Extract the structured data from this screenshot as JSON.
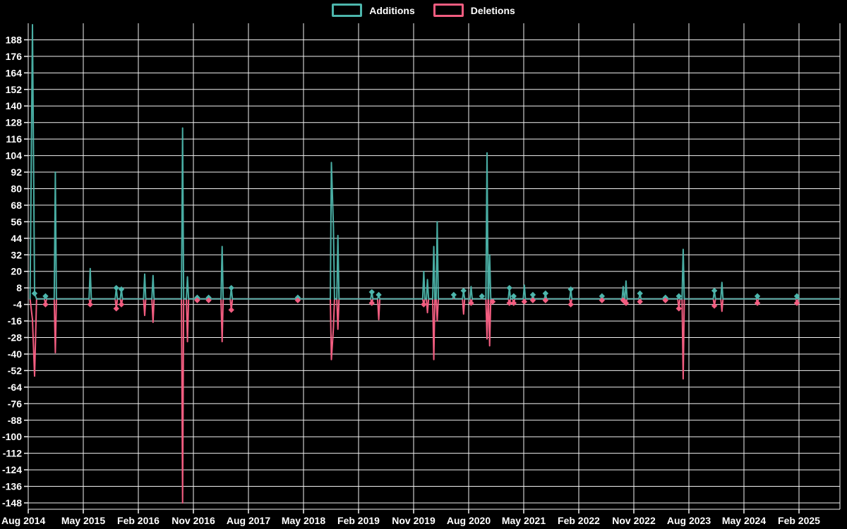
{
  "legend": {
    "additions_label": "Additions",
    "deletions_label": "Deletions"
  },
  "colors": {
    "background": "#000000",
    "grid": "#f2f2f2",
    "text": "#ffffff",
    "additions": "#4db6ac",
    "deletions": "#f25d80"
  },
  "chart_data": {
    "type": "line",
    "title": "",
    "legend_position": "top",
    "grid": true,
    "series": [
      {
        "name": "Additions",
        "color": "#4db6ac"
      },
      {
        "name": "Deletions",
        "color": "#f25d80"
      }
    ],
    "x_ticks": [
      "Aug 2014",
      "May 2015",
      "Feb 2016",
      "Nov 2016",
      "Aug 2017",
      "May 2018",
      "Feb 2019",
      "Nov 2019",
      "Aug 2020",
      "May 2021",
      "Feb 2022",
      "Nov 2022",
      "Aug 2023",
      "May 2024",
      "Feb 2025"
    ],
    "x_tick_interval_months": 9,
    "y_ticks": [
      188,
      176,
      164,
      152,
      140,
      128,
      116,
      104,
      92,
      80,
      68,
      56,
      44,
      32,
      20,
      8,
      -4,
      -16,
      -28,
      -40,
      -52,
      -64,
      -76,
      -88,
      -100,
      -112,
      -124,
      -136,
      -148
    ],
    "ylim": [
      -153,
      200
    ],
    "x_range": [
      "2014-08-01",
      "2025-08-20"
    ],
    "points_format": [
      "date",
      "additions",
      "deletions"
    ],
    "points": [
      [
        "2014-08-10",
        0,
        0
      ],
      [
        "2014-08-22",
        199,
        -15
      ],
      [
        "2014-09-02",
        4,
        -56
      ],
      [
        "2014-09-12",
        0,
        0
      ],
      [
        "2014-10-26",
        2,
        -4
      ],
      [
        "2014-12-14",
        92,
        -39
      ],
      [
        "2015-06-05",
        22,
        -4
      ],
      [
        "2015-10-13",
        8,
        -7
      ],
      [
        "2015-11-08",
        7,
        -4
      ],
      [
        "2016-03-02",
        18,
        -12
      ],
      [
        "2016-04-13",
        17,
        -17
      ],
      [
        "2016-09-08",
        124,
        -148
      ],
      [
        "2016-10-02",
        16,
        -31
      ],
      [
        "2016-11-20",
        1,
        -1
      ],
      [
        "2017-01-16",
        1,
        -1
      ],
      [
        "2017-03-22",
        38,
        -31
      ],
      [
        "2017-05-07",
        8,
        -8
      ],
      [
        "2018-04-03",
        1,
        -1
      ],
      [
        "2018-09-18",
        99,
        -44
      ],
      [
        "2018-09-28",
        52,
        -21
      ],
      [
        "2018-10-20",
        46,
        -22
      ],
      [
        "2019-04-06",
        5,
        -3
      ],
      [
        "2019-05-10",
        3,
        -15
      ],
      [
        "2019-12-21",
        20,
        -4
      ],
      [
        "2020-01-09",
        14,
        -10
      ],
      [
        "2020-02-10",
        38,
        -44
      ],
      [
        "2020-02-27",
        56,
        -16
      ],
      [
        "2020-05-18",
        3,
        0
      ],
      [
        "2020-07-06",
        6,
        -11
      ],
      [
        "2020-08-13",
        9,
        -3
      ],
      [
        "2020-10-06",
        2,
        0
      ],
      [
        "2020-11-01",
        106,
        -29
      ],
      [
        "2020-11-14",
        32,
        -34
      ],
      [
        "2020-11-29",
        0,
        -2
      ],
      [
        "2021-02-21",
        8,
        -3
      ],
      [
        "2021-03-12",
        2,
        -3
      ],
      [
        "2021-05-04",
        10,
        -2
      ],
      [
        "2021-06-16",
        3,
        -1
      ],
      [
        "2021-08-18",
        4,
        -1
      ],
      [
        "2021-12-22",
        7,
        -4
      ],
      [
        "2022-05-25",
        2,
        -1
      ],
      [
        "2022-09-09",
        9,
        -1
      ],
      [
        "2022-09-23",
        13,
        -3
      ],
      [
        "2022-12-01",
        4,
        -2
      ],
      [
        "2023-04-06",
        1,
        -1
      ],
      [
        "2023-06-12",
        2,
        -7
      ],
      [
        "2023-07-03",
        36,
        -58
      ],
      [
        "2023-12-06",
        6,
        -5
      ],
      [
        "2024-01-13",
        12,
        -9
      ],
      [
        "2024-07-07",
        2,
        -3
      ],
      [
        "2025-01-21",
        2,
        -3
      ],
      [
        "2025-08-20",
        0,
        0
      ]
    ]
  }
}
